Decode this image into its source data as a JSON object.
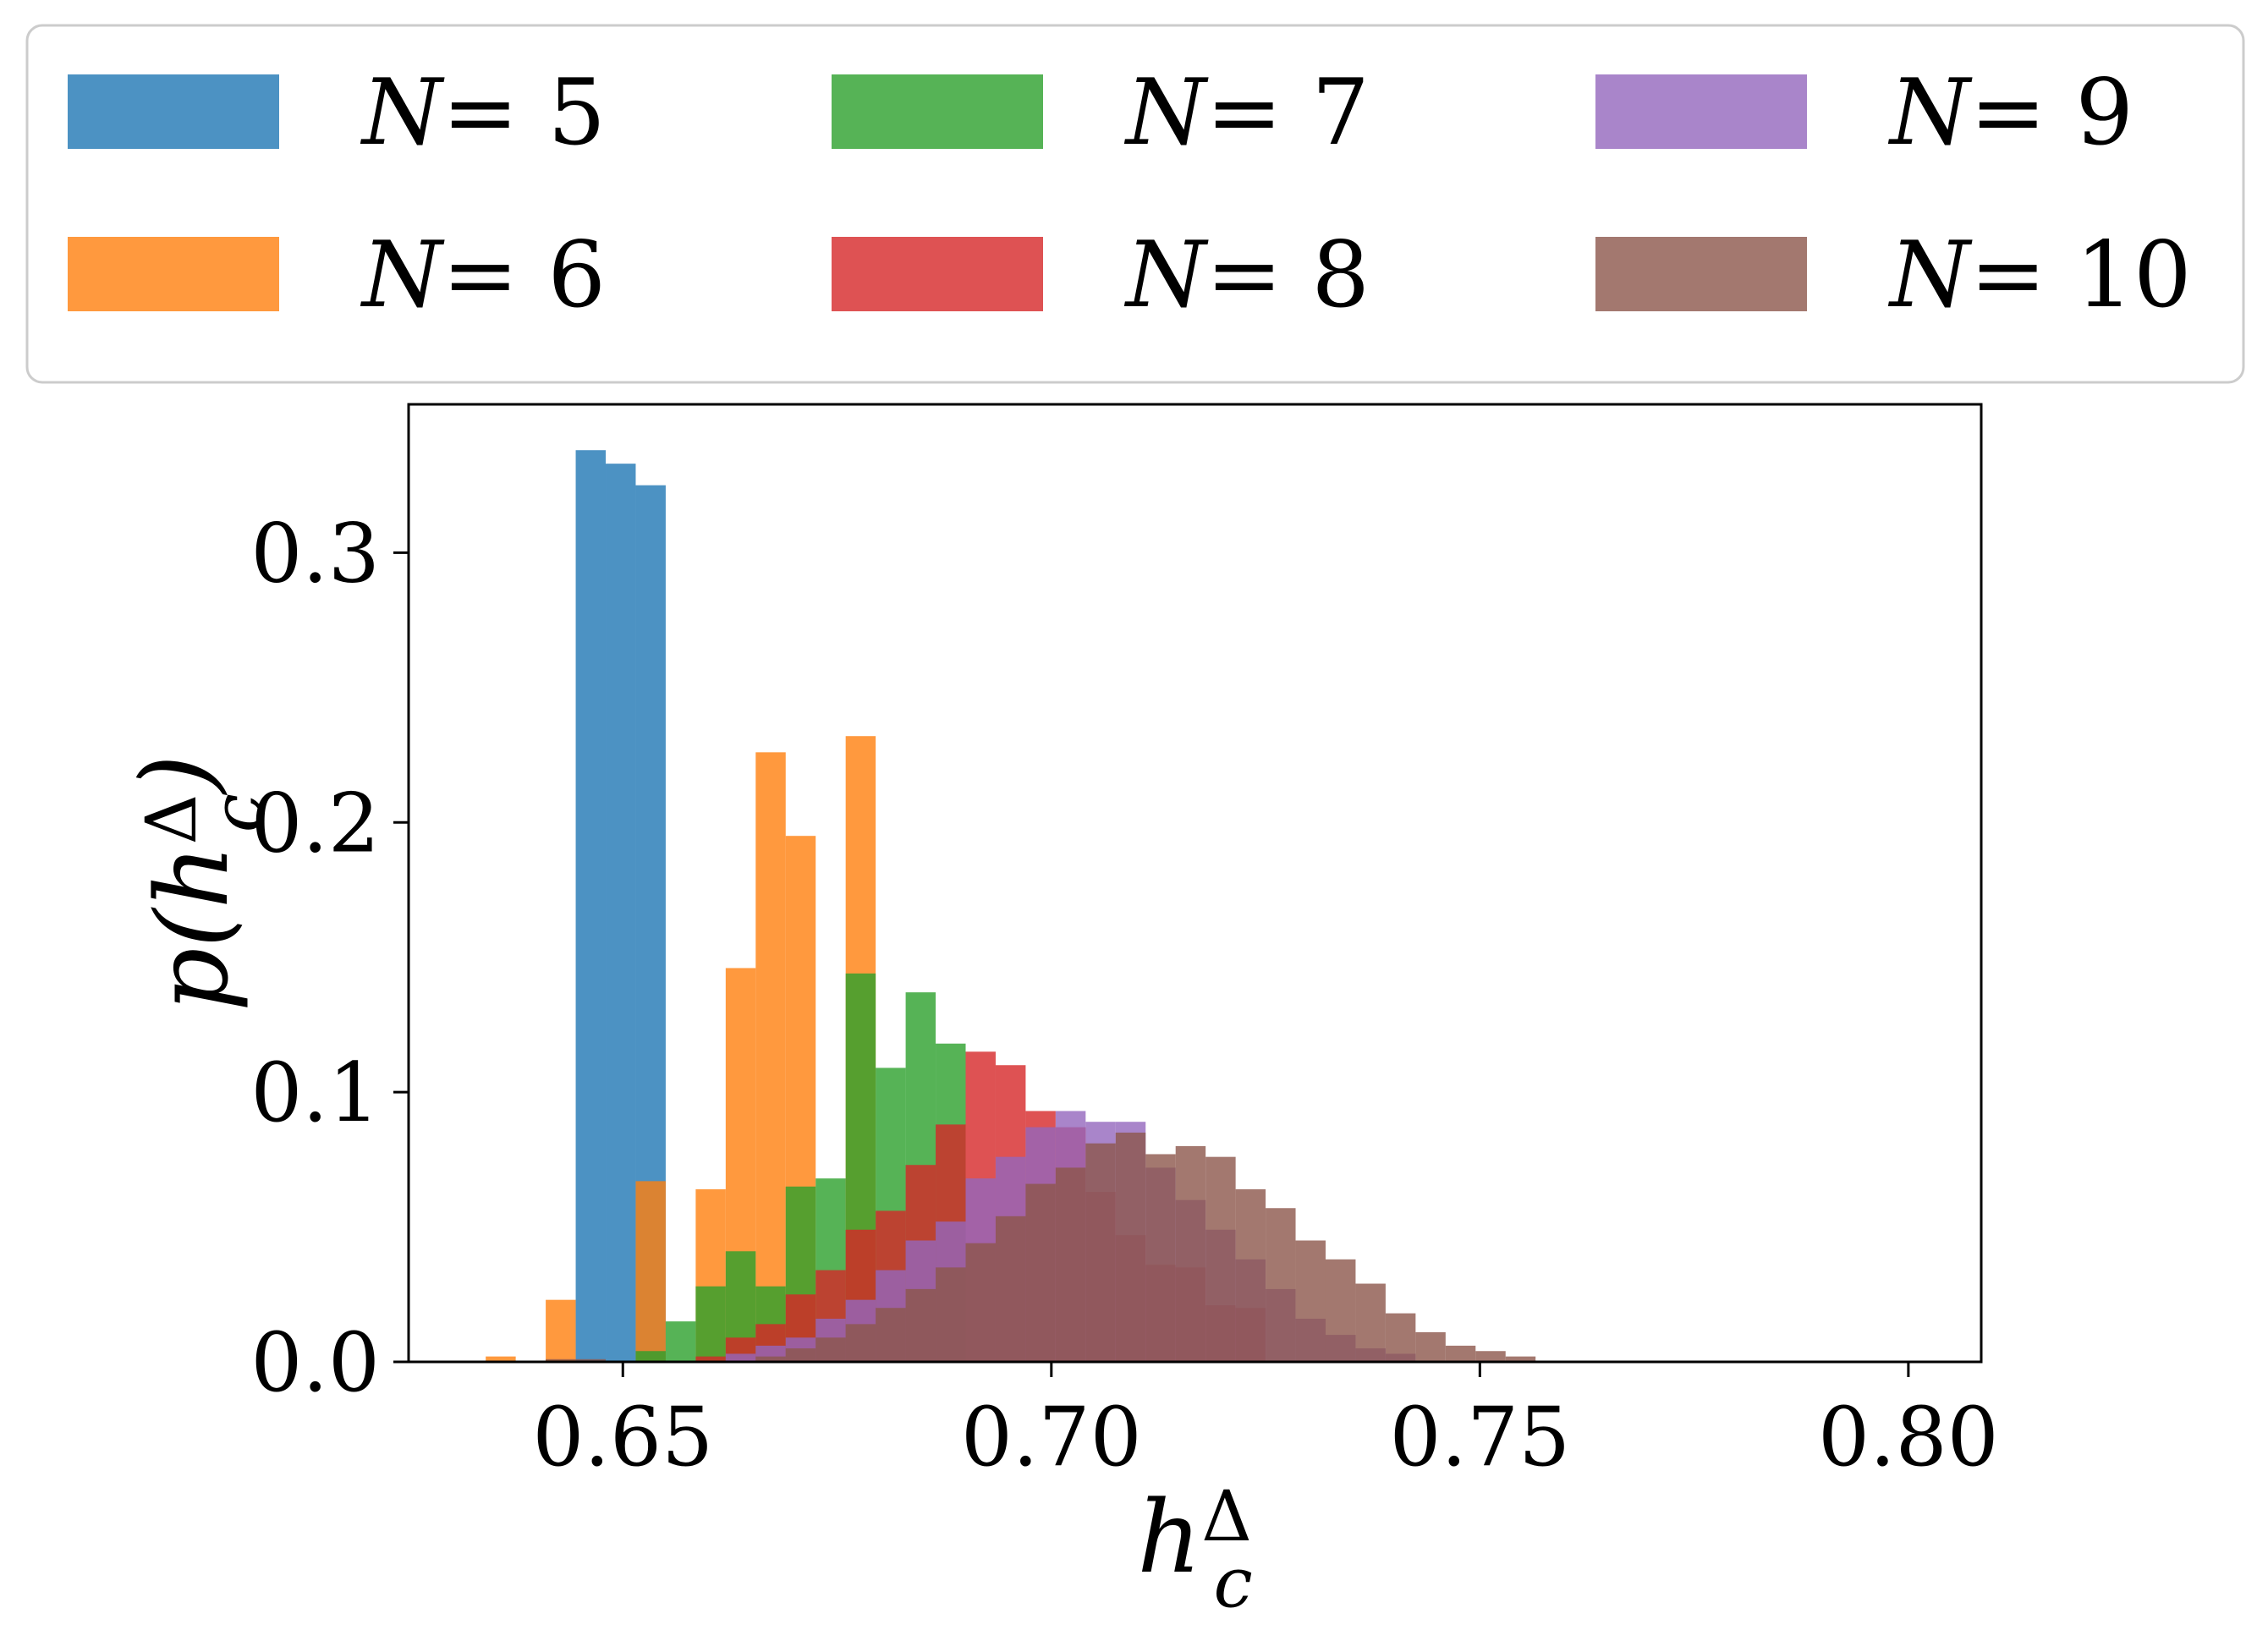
{
  "chart_data": {
    "type": "bar",
    "subtype": "histogram",
    "xlabel": "h_c^Δ",
    "ylabel": "p(h_c^Δ)",
    "xlim": [
      0.625,
      0.8085
    ],
    "ylim": [
      0.0,
      0.355
    ],
    "x_ticks": [
      0.65,
      0.7,
      0.75,
      0.8
    ],
    "x_tick_labels": [
      "0.65",
      "0.70",
      "0.75",
      "0.80"
    ],
    "y_ticks": [
      0.0,
      0.1,
      0.2,
      0.3
    ],
    "y_tick_labels": [
      "0.0",
      "0.1",
      "0.2",
      "0.3"
    ],
    "grid": false,
    "legend_position": "top (outside, 3 columns)",
    "bar_opacity": 0.8,
    "series": [
      {
        "name": "N= 5",
        "color": "#1f77b4",
        "bins": [
          {
            "x0": 0.6445,
            "x1": 0.648,
            "value": 0.338
          },
          {
            "x0": 0.648,
            "x1": 0.6515,
            "value": 0.333
          },
          {
            "x0": 0.6515,
            "x1": 0.655,
            "value": 0.325
          }
        ]
      },
      {
        "name": "N= 6",
        "color": "#ff7f0e",
        "bins": [
          {
            "x0": 0.634,
            "x1": 0.6375,
            "value": 0.002
          },
          {
            "x0": 0.641,
            "x1": 0.6445,
            "value": 0.023
          },
          {
            "x0": 0.6515,
            "x1": 0.655,
            "value": 0.067
          },
          {
            "x0": 0.6585,
            "x1": 0.662,
            "value": 0.064
          },
          {
            "x0": 0.662,
            "x1": 0.6655,
            "value": 0.146
          },
          {
            "x0": 0.6655,
            "x1": 0.669,
            "value": 0.226
          },
          {
            "x0": 0.669,
            "x1": 0.6725,
            "value": 0.195
          },
          {
            "x0": 0.676,
            "x1": 0.6795,
            "value": 0.232
          }
        ]
      },
      {
        "name": "N= 7",
        "color": "#2ca02c",
        "bins": [
          {
            "x0": 0.6515,
            "x1": 0.655,
            "value": 0.004
          },
          {
            "x0": 0.655,
            "x1": 0.6585,
            "value": 0.015
          },
          {
            "x0": 0.6585,
            "x1": 0.662,
            "value": 0.028
          },
          {
            "x0": 0.662,
            "x1": 0.6655,
            "value": 0.041
          },
          {
            "x0": 0.6655,
            "x1": 0.669,
            "value": 0.028
          },
          {
            "x0": 0.669,
            "x1": 0.6725,
            "value": 0.065
          },
          {
            "x0": 0.6725,
            "x1": 0.676,
            "value": 0.068
          },
          {
            "x0": 0.676,
            "x1": 0.6795,
            "value": 0.144
          },
          {
            "x0": 0.6795,
            "x1": 0.683,
            "value": 0.109
          },
          {
            "x0": 0.683,
            "x1": 0.6865,
            "value": 0.137
          },
          {
            "x0": 0.6865,
            "x1": 0.69,
            "value": 0.118
          }
        ]
      },
      {
        "name": "N= 8",
        "color": "#d62728",
        "bins": [
          {
            "x0": 0.6585,
            "x1": 0.662,
            "value": 0.002
          },
          {
            "x0": 0.662,
            "x1": 0.6655,
            "value": 0.009
          },
          {
            "x0": 0.6655,
            "x1": 0.669,
            "value": 0.014
          },
          {
            "x0": 0.669,
            "x1": 0.6725,
            "value": 0.025
          },
          {
            "x0": 0.6725,
            "x1": 0.676,
            "value": 0.034
          },
          {
            "x0": 0.676,
            "x1": 0.6795,
            "value": 0.049
          },
          {
            "x0": 0.6795,
            "x1": 0.683,
            "value": 0.056
          },
          {
            "x0": 0.683,
            "x1": 0.6865,
            "value": 0.073
          },
          {
            "x0": 0.6865,
            "x1": 0.69,
            "value": 0.088
          },
          {
            "x0": 0.69,
            "x1": 0.6935,
            "value": 0.115
          },
          {
            "x0": 0.6935,
            "x1": 0.697,
            "value": 0.11
          },
          {
            "x0": 0.697,
            "x1": 0.7005,
            "value": 0.093
          },
          {
            "x0": 0.7005,
            "x1": 0.704,
            "value": 0.087
          },
          {
            "x0": 0.704,
            "x1": 0.7075,
            "value": 0.063
          },
          {
            "x0": 0.7075,
            "x1": 0.711,
            "value": 0.047
          },
          {
            "x0": 0.711,
            "x1": 0.7145,
            "value": 0.036
          },
          {
            "x0": 0.7145,
            "x1": 0.718,
            "value": 0.035
          },
          {
            "x0": 0.718,
            "x1": 0.7215,
            "value": 0.021
          },
          {
            "x0": 0.7215,
            "x1": 0.725,
            "value": 0.02
          }
        ]
      },
      {
        "name": "N= 9",
        "color": "#9467bd",
        "bins": [
          {
            "x0": 0.662,
            "x1": 0.6655,
            "value": 0.003
          },
          {
            "x0": 0.6655,
            "x1": 0.669,
            "value": 0.006
          },
          {
            "x0": 0.669,
            "x1": 0.6725,
            "value": 0.009
          },
          {
            "x0": 0.6725,
            "x1": 0.676,
            "value": 0.016
          },
          {
            "x0": 0.676,
            "x1": 0.6795,
            "value": 0.023
          },
          {
            "x0": 0.6795,
            "x1": 0.683,
            "value": 0.034
          },
          {
            "x0": 0.683,
            "x1": 0.6865,
            "value": 0.045
          },
          {
            "x0": 0.6865,
            "x1": 0.69,
            "value": 0.052
          },
          {
            "x0": 0.69,
            "x1": 0.6935,
            "value": 0.068
          },
          {
            "x0": 0.6935,
            "x1": 0.697,
            "value": 0.076
          },
          {
            "x0": 0.697,
            "x1": 0.7005,
            "value": 0.087
          },
          {
            "x0": 0.7005,
            "x1": 0.704,
            "value": 0.093
          },
          {
            "x0": 0.704,
            "x1": 0.7075,
            "value": 0.089
          },
          {
            "x0": 0.7075,
            "x1": 0.711,
            "value": 0.089
          },
          {
            "x0": 0.711,
            "x1": 0.7145,
            "value": 0.072
          },
          {
            "x0": 0.7145,
            "x1": 0.718,
            "value": 0.06
          },
          {
            "x0": 0.718,
            "x1": 0.7215,
            "value": 0.049
          },
          {
            "x0": 0.7215,
            "x1": 0.725,
            "value": 0.038
          },
          {
            "x0": 0.725,
            "x1": 0.7285,
            "value": 0.027
          },
          {
            "x0": 0.7285,
            "x1": 0.732,
            "value": 0.016
          },
          {
            "x0": 0.732,
            "x1": 0.7355,
            "value": 0.01
          },
          {
            "x0": 0.7355,
            "x1": 0.739,
            "value": 0.005
          },
          {
            "x0": 0.739,
            "x1": 0.7425,
            "value": 0.003
          }
        ]
      },
      {
        "name": "N= 10",
        "color": "#8c564b",
        "bins": [
          {
            "x0": 0.641,
            "x1": 0.6445,
            "value": 0.001
          },
          {
            "x0": 0.6445,
            "x1": 0.648,
            "value": 0.001
          },
          {
            "x0": 0.6655,
            "x1": 0.669,
            "value": 0.002
          },
          {
            "x0": 0.669,
            "x1": 0.6725,
            "value": 0.005
          },
          {
            "x0": 0.6725,
            "x1": 0.676,
            "value": 0.009
          },
          {
            "x0": 0.676,
            "x1": 0.6795,
            "value": 0.014
          },
          {
            "x0": 0.6795,
            "x1": 0.683,
            "value": 0.02
          },
          {
            "x0": 0.683,
            "x1": 0.6865,
            "value": 0.027
          },
          {
            "x0": 0.6865,
            "x1": 0.69,
            "value": 0.035
          },
          {
            "x0": 0.69,
            "x1": 0.6935,
            "value": 0.044
          },
          {
            "x0": 0.6935,
            "x1": 0.697,
            "value": 0.054
          },
          {
            "x0": 0.697,
            "x1": 0.7005,
            "value": 0.066
          },
          {
            "x0": 0.7005,
            "x1": 0.704,
            "value": 0.072
          },
          {
            "x0": 0.704,
            "x1": 0.7075,
            "value": 0.081
          },
          {
            "x0": 0.7075,
            "x1": 0.711,
            "value": 0.085
          },
          {
            "x0": 0.711,
            "x1": 0.7145,
            "value": 0.077
          },
          {
            "x0": 0.7145,
            "x1": 0.718,
            "value": 0.08
          },
          {
            "x0": 0.718,
            "x1": 0.7215,
            "value": 0.076
          },
          {
            "x0": 0.7215,
            "x1": 0.725,
            "value": 0.064
          },
          {
            "x0": 0.725,
            "x1": 0.7285,
            "value": 0.057
          },
          {
            "x0": 0.7285,
            "x1": 0.732,
            "value": 0.045
          },
          {
            "x0": 0.732,
            "x1": 0.7355,
            "value": 0.038
          },
          {
            "x0": 0.7355,
            "x1": 0.739,
            "value": 0.029
          },
          {
            "x0": 0.739,
            "x1": 0.7425,
            "value": 0.018
          },
          {
            "x0": 0.7425,
            "x1": 0.746,
            "value": 0.011
          },
          {
            "x0": 0.746,
            "x1": 0.7495,
            "value": 0.006
          },
          {
            "x0": 0.7495,
            "x1": 0.753,
            "value": 0.004
          },
          {
            "x0": 0.753,
            "x1": 0.7565,
            "value": 0.002
          }
        ]
      }
    ]
  }
}
